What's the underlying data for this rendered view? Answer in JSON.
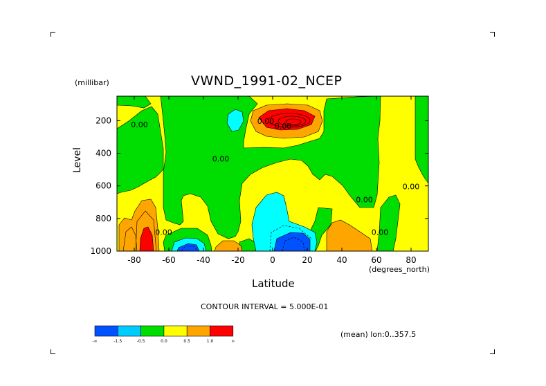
{
  "chart_data": {
    "type": "heatmap",
    "title": "VWND_1991-02_NCEP",
    "xlabel": "Latitude",
    "ylabel": "Level",
    "y_units": "(millibar)",
    "x_units": "(degrees_north)",
    "xlim": [
      -90,
      90
    ],
    "ylim": [
      1000,
      50
    ],
    "x_ticks": [
      "-80",
      "-60",
      "-40",
      "-20",
      "0",
      "20",
      "40",
      "60",
      "80"
    ],
    "x_tick_values": [
      -80,
      -60,
      -40,
      -20,
      0,
      20,
      40,
      60,
      80
    ],
    "y_ticks": [
      "200",
      "400",
      "600",
      "800",
      "1000"
    ],
    "y_tick_values": [
      200,
      400,
      600,
      800,
      1000
    ],
    "contour_labels": [
      {
        "text": "0.00",
        "lat": -77,
        "level": 240
      },
      {
        "text": "0.00",
        "lat": -30,
        "level": 450
      },
      {
        "text": "0.00",
        "lat": -63,
        "level": 900
      },
      {
        "text": "0.00",
        "lat": 6,
        "level": 250
      },
      {
        "text": "0.00",
        "lat": -4,
        "level": 220
      },
      {
        "text": "0.00",
        "lat": 53,
        "level": 700
      },
      {
        "text": "0.00",
        "lat": 80,
        "level": 620
      },
      {
        "text": "0.00",
        "lat": 62,
        "level": 900
      }
    ],
    "contour_interval": "CONTOUR INTERVAL = 5.000E-01",
    "annotation": "(mean) lon:0..357.5",
    "legend": {
      "colors": [
        "#0052ff",
        "#00ccff",
        "#00dd00",
        "#ffff00",
        "#ffa500",
        "#ff0000"
      ],
      "labels": [
        "-∞",
        "-1.5",
        "-0.5",
        "0.0",
        "0.5",
        "1.0",
        "∞"
      ]
    }
  }
}
